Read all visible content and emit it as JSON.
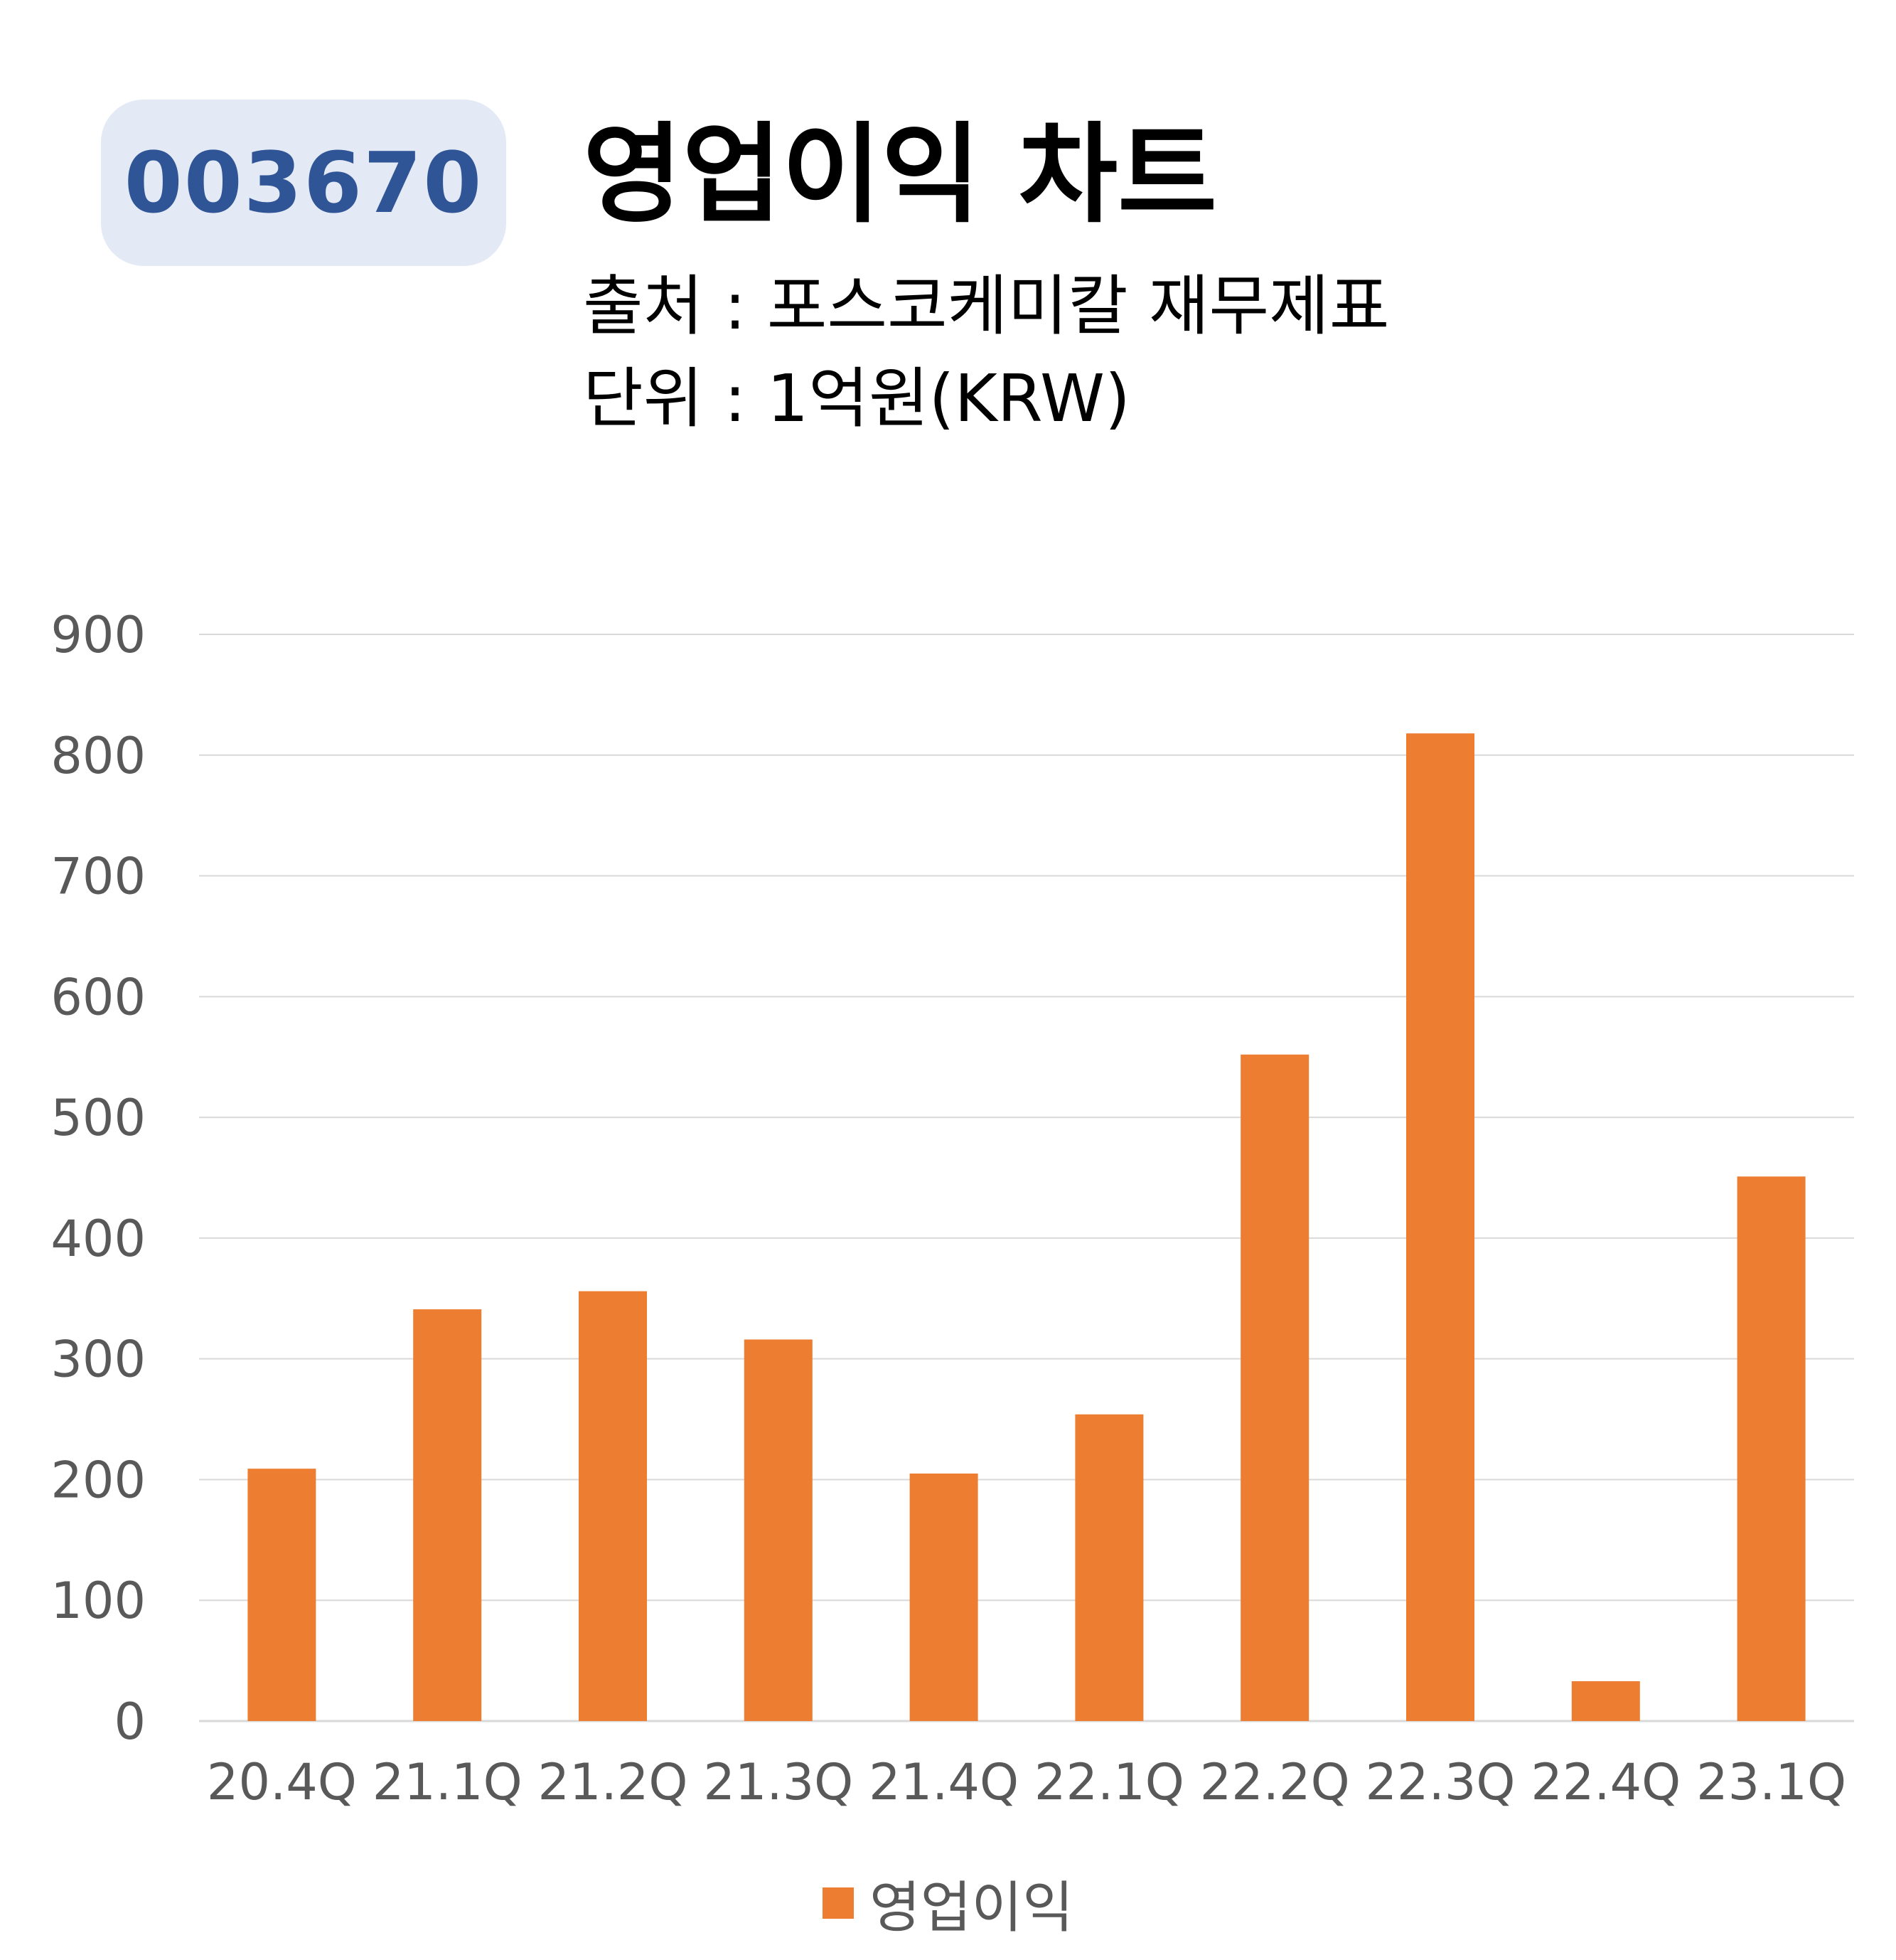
{
  "header": {
    "code": "003670",
    "title": "영업이익 차트",
    "source": "출처 : 포스코케미칼 재무제표",
    "unit": "단위 : 1억원(KRW)"
  },
  "colors": {
    "bar": "#ed7d31",
    "badge_bg": "#e3e9f5",
    "badge_text": "#2f5597",
    "grid": "#d9d9d9"
  },
  "chart_data": {
    "type": "bar",
    "categories": [
      "20.4Q",
      "21.1Q",
      "21.2Q",
      "21.3Q",
      "21.4Q",
      "22.1Q",
      "22.2Q",
      "22.3Q",
      "22.4Q",
      "23.1Q"
    ],
    "series": [
      {
        "name": "영업이익",
        "values": [
          209,
          341,
          356,
          316,
          205,
          254,
          552,
          818,
          33,
          451
        ]
      }
    ],
    "ylim": [
      0,
      900
    ],
    "yticks": [
      0,
      100,
      200,
      300,
      400,
      500,
      600,
      700,
      800,
      900
    ],
    "grid": true,
    "legend": "bottom"
  }
}
